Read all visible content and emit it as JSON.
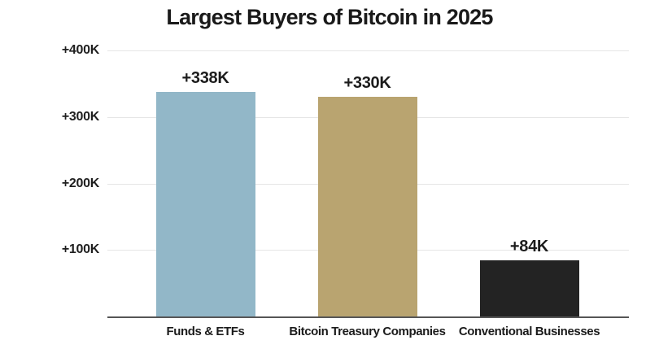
{
  "chart_data": {
    "type": "bar",
    "title": "Largest Buyers of Bitcoin in 2025",
    "categories": [
      "Funds & ETFs",
      "Bitcoin Treasury Companies",
      "Conventional Businesses"
    ],
    "values": [
      338,
      330,
      84
    ],
    "value_labels": [
      "+338K",
      "+330K",
      "+84K"
    ],
    "xlabel": "",
    "ylabel": "",
    "ylim": [
      0,
      400
    ],
    "y_ticks": [
      {
        "label": "+400K",
        "value": 400
      },
      {
        "label": "+300K",
        "value": 300
      },
      {
        "label": "+200K",
        "value": 200
      },
      {
        "label": "+100K",
        "value": 100
      }
    ],
    "bar_colors": [
      "#92b7c8",
      "#b9a470",
      "#232323"
    ],
    "grid": true,
    "legend": false,
    "colors": {
      "background": "#ffffff",
      "gridline": "#e6e6e6",
      "axis_line": "#565656",
      "text": "#1a1a1a"
    }
  }
}
